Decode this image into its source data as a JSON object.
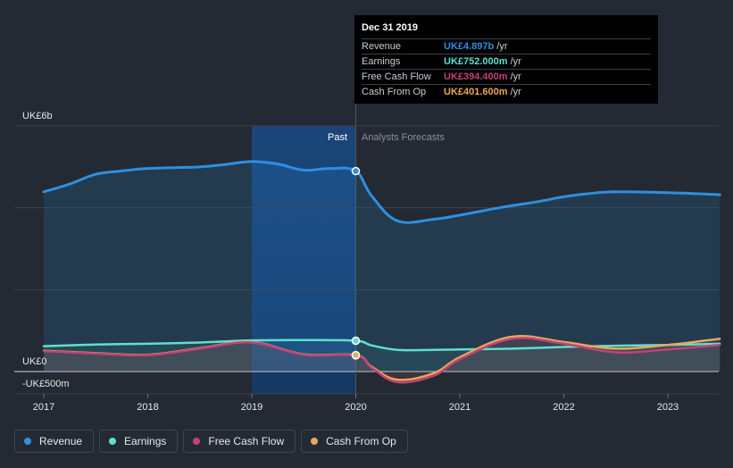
{
  "chart_data": {
    "type": "line",
    "y_axis_labels": {
      "top": "UK£6b",
      "zero": "UK£0",
      "bottom": "-UK£500m"
    },
    "ylim": [
      -500,
      6000
    ],
    "xlim": [
      2017,
      2023.5
    ],
    "x_ticks": [
      {
        "value": 2017,
        "label": "2017"
      },
      {
        "value": 2018,
        "label": "2018"
      },
      {
        "value": 2019,
        "label": "2019"
      },
      {
        "value": 2020,
        "label": "2020"
      },
      {
        "value": 2021,
        "label": "2021"
      },
      {
        "value": 2022,
        "label": "2022"
      },
      {
        "value": 2023,
        "label": "2023"
      }
    ],
    "regions": {
      "past_label": "Past",
      "forecast_label": "Analysts Forecasts",
      "divider_x": 2020,
      "highlight_from_x": 2019
    },
    "series": [
      {
        "name": "Revenue",
        "color": "#2e8fe0",
        "points": [
          [
            2017,
            4390
          ],
          [
            2017.25,
            4580
          ],
          [
            2017.5,
            4820
          ],
          [
            2017.75,
            4900
          ],
          [
            2018,
            4960
          ],
          [
            2018.5,
            5000
          ],
          [
            2018.75,
            5060
          ],
          [
            2019,
            5130
          ],
          [
            2019.25,
            5070
          ],
          [
            2019.5,
            4920
          ],
          [
            2019.75,
            4960
          ],
          [
            2020,
            4897
          ],
          [
            2020.15,
            4300
          ],
          [
            2020.4,
            3680
          ],
          [
            2020.75,
            3720
          ],
          [
            2021,
            3820
          ],
          [
            2021.4,
            4010
          ],
          [
            2021.75,
            4150
          ],
          [
            2022,
            4270
          ],
          [
            2022.25,
            4350
          ],
          [
            2022.5,
            4390
          ],
          [
            2023,
            4370
          ],
          [
            2023.5,
            4320
          ]
        ],
        "forecast_from": 2020
      },
      {
        "name": "Earnings",
        "color": "#5ee0d0",
        "points": [
          [
            2017,
            620
          ],
          [
            2017.5,
            660
          ],
          [
            2018,
            680
          ],
          [
            2018.5,
            710
          ],
          [
            2019,
            760
          ],
          [
            2019.5,
            770
          ],
          [
            2020,
            752
          ],
          [
            2020.15,
            640
          ],
          [
            2020.4,
            530
          ],
          [
            2020.75,
            530
          ],
          [
            2021,
            540
          ],
          [
            2021.5,
            560
          ],
          [
            2022,
            600
          ],
          [
            2022.5,
            630
          ],
          [
            2023,
            650
          ],
          [
            2023.5,
            680
          ]
        ],
        "forecast_from": 2020
      },
      {
        "name": "Free Cash Flow",
        "color": "#c3417a",
        "points": [
          [
            2017,
            500
          ],
          [
            2017.5,
            440
          ],
          [
            2018,
            400
          ],
          [
            2018.5,
            560
          ],
          [
            2019,
            710
          ],
          [
            2019.5,
            410
          ],
          [
            2020,
            394.4
          ],
          [
            2020.15,
            100
          ],
          [
            2020.4,
            -260
          ],
          [
            2020.75,
            -100
          ],
          [
            2021,
            300
          ],
          [
            2021.5,
            800
          ],
          [
            2022,
            680
          ],
          [
            2022.5,
            470
          ],
          [
            2023,
            540
          ],
          [
            2023.5,
            650
          ]
        ],
        "forecast_from": 2020
      },
      {
        "name": "Cash From Op",
        "color": "#e8a857",
        "points": [
          [
            2017,
            510
          ],
          [
            2017.5,
            450
          ],
          [
            2018,
            410
          ],
          [
            2018.5,
            570
          ],
          [
            2019,
            720
          ],
          [
            2019.5,
            420
          ],
          [
            2020,
            401.6
          ],
          [
            2020.15,
            120
          ],
          [
            2020.4,
            -200
          ],
          [
            2020.75,
            -40
          ],
          [
            2021,
            350
          ],
          [
            2021.5,
            850
          ],
          [
            2022,
            720
          ],
          [
            2022.5,
            560
          ],
          [
            2023,
            650
          ],
          [
            2023.5,
            800
          ]
        ],
        "forecast_from": 2020
      }
    ],
    "markers_x": 2020,
    "grid": true,
    "legend_placement": "bottom-left"
  },
  "tooltip": {
    "date": "Dec 31 2019",
    "rows": [
      {
        "name": "Revenue",
        "value": "UK£4.897b",
        "unit": "/yr",
        "color": "#2e8fe0"
      },
      {
        "name": "Earnings",
        "value": "UK£752.000m",
        "unit": "/yr",
        "color": "#5ee0d0"
      },
      {
        "name": "Free Cash Flow",
        "value": "UK£394.400m",
        "unit": "/yr",
        "color": "#c3417a"
      },
      {
        "name": "Cash From Op",
        "value": "UK£401.600m",
        "unit": "/yr",
        "color": "#e8a857"
      }
    ]
  },
  "legend": [
    {
      "label": "Revenue",
      "color": "#2e8fe0"
    },
    {
      "label": "Earnings",
      "color": "#5ee0d0"
    },
    {
      "label": "Free Cash Flow",
      "color": "#c3417a"
    },
    {
      "label": "Cash From Op",
      "color": "#e8a857"
    }
  ]
}
